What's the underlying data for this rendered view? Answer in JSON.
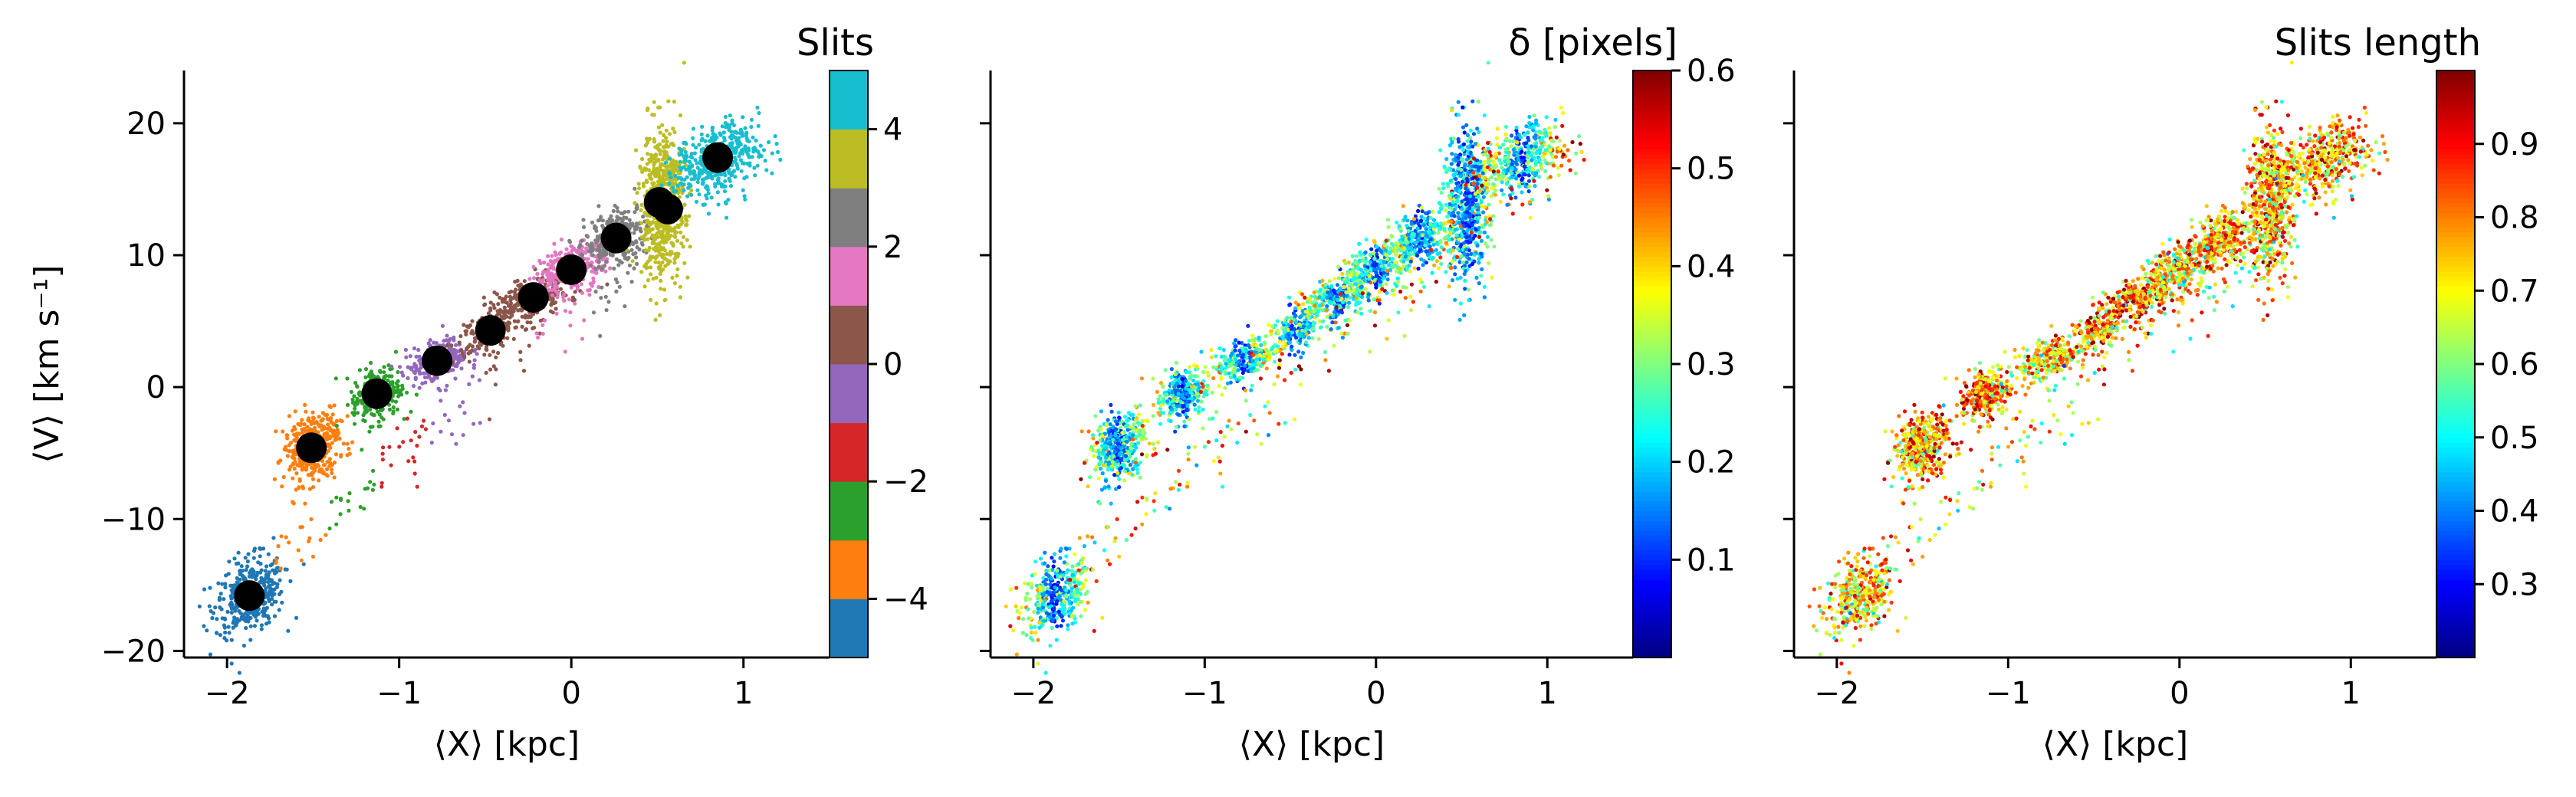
{
  "chart_data": [
    {
      "type": "scatter",
      "panel": "slits",
      "xlabel": "⟨X⟩ [kpc]",
      "ylabel": "⟨V⟩ [km s⁻¹]",
      "xlim": [
        -2.25,
        1.5
      ],
      "ylim": [
        -20.5,
        24
      ],
      "xticks": [
        -2,
        -1,
        0,
        1
      ],
      "xtick_labels": [
        "−2",
        "−1",
        "0",
        "1"
      ],
      "yticks": [
        -20,
        -10,
        0,
        10,
        20
      ],
      "ytick_labels": [
        "−20",
        "−10",
        "0",
        "10",
        "20"
      ],
      "colorbar": {
        "title": "Slits",
        "type": "discrete",
        "range": [
          -5,
          5
        ],
        "ticks": [
          -4,
          -2,
          0,
          2,
          4
        ],
        "tick_labels": [
          "−4",
          "−2",
          "0",
          "2",
          "4"
        ],
        "colors": [
          "#1f77b4",
          "#ff7f0e",
          "#2ca02c",
          "#d62728",
          "#9467bd",
          "#8c564b",
          "#e377c2",
          "#7f7f7f",
          "#bcbd22",
          "#17becf"
        ]
      },
      "slit_centers": [
        {
          "x": -1.87,
          "y": -15.8
        },
        {
          "x": -1.51,
          "y": -4.6
        },
        {
          "x": -1.13,
          "y": -0.5
        },
        {
          "x": -0.78,
          "y": 2.0
        },
        {
          "x": -0.47,
          "y": 4.3
        },
        {
          "x": -0.22,
          "y": 6.8
        },
        {
          "x": 0.0,
          "y": 8.9
        },
        {
          "x": 0.26,
          "y": 11.3
        },
        {
          "x": 0.51,
          "y": 14.0
        },
        {
          "x": 0.56,
          "y": 13.5
        },
        {
          "x": 0.85,
          "y": 17.4
        }
      ]
    },
    {
      "type": "scatter",
      "panel": "delta",
      "xlabel": "⟨X⟩ [kpc]",
      "xlim": [
        -2.25,
        1.5
      ],
      "ylim": [
        -20.5,
        24
      ],
      "xticks": [
        -2,
        -1,
        0,
        1
      ],
      "xtick_labels": [
        "−2",
        "−1",
        "0",
        "1"
      ],
      "colorbar": {
        "title": "δ [pixels]",
        "colormap": "jet",
        "range": [
          0.0,
          0.6
        ],
        "ticks": [
          0.1,
          0.2,
          0.3,
          0.4,
          0.5,
          0.6
        ],
        "tick_labels": [
          "0.1",
          "0.2",
          "0.3",
          "0.4",
          "0.5",
          "0.6"
        ]
      }
    },
    {
      "type": "scatter",
      "panel": "slits-length",
      "xlabel": "⟨X⟩ [kpc]",
      "xlim": [
        -2.25,
        1.5
      ],
      "ylim": [
        -20.5,
        24
      ],
      "xticks": [
        -2,
        -1,
        0,
        1
      ],
      "xtick_labels": [
        "−2",
        "−1",
        "0",
        "1"
      ],
      "colorbar": {
        "title": "Slits length",
        "colormap": "jet",
        "range": [
          0.2,
          1.0
        ],
        "ticks": [
          0.3,
          0.4,
          0.5,
          0.6,
          0.7,
          0.8,
          0.9
        ],
        "tick_labels": [
          "0.3",
          "0.4",
          "0.5",
          "0.6",
          "0.7",
          "0.8",
          "0.9"
        ]
      }
    }
  ]
}
